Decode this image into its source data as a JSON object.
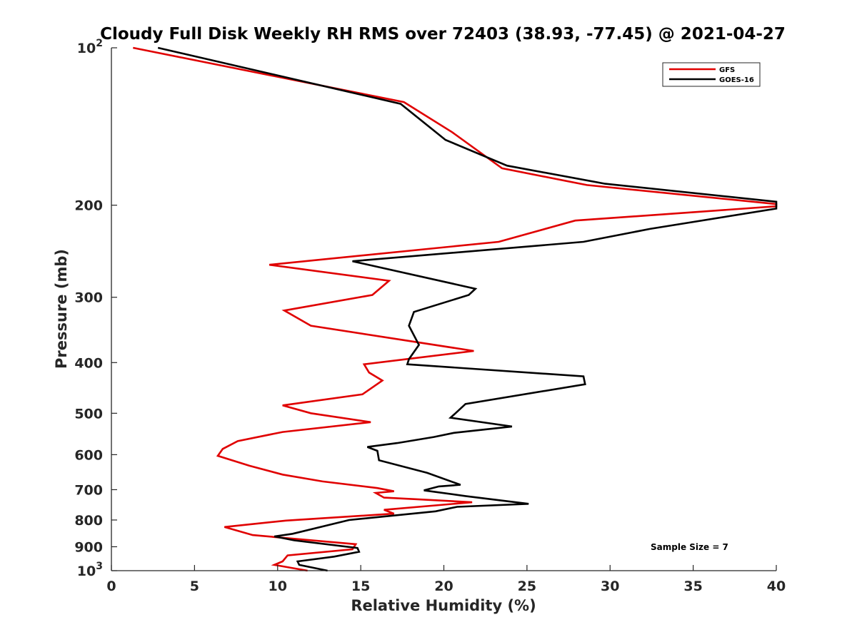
{
  "chart_data": {
    "type": "line",
    "title": "Cloudy Full Disk Weekly RH RMS over 72403 (38.93, -77.45) @ 2021-04-27",
    "xlabel": "Relative Humidity (%)",
    "ylabel": "Pressure (mb)",
    "xlim": [
      0,
      40
    ],
    "ylim": [
      100,
      1000
    ],
    "yscale": "log",
    "y_reversed": true,
    "grid": false,
    "legend_position": "top-right",
    "x_ticks": [
      0,
      5,
      10,
      15,
      20,
      25,
      30,
      35,
      40
    ],
    "x_tick_labels": [
      "0",
      "5",
      "10",
      "15",
      "20",
      "25",
      "30",
      "35",
      "40"
    ],
    "y_ticks": [
      100,
      200,
      300,
      400,
      500,
      600,
      700,
      800,
      900,
      1000
    ],
    "y_tick_labels": [
      {
        "base": "10",
        "exp": "2"
      },
      {
        "base": "200",
        "exp": ""
      },
      {
        "base": "300",
        "exp": ""
      },
      {
        "base": "400",
        "exp": ""
      },
      {
        "base": "500",
        "exp": ""
      },
      {
        "base": "600",
        "exp": ""
      },
      {
        "base": "700",
        "exp": ""
      },
      {
        "base": "800",
        "exp": ""
      },
      {
        "base": "900",
        "exp": ""
      },
      {
        "base": "10",
        "exp": "3"
      }
    ],
    "annotation": "Sample Size = 7",
    "series": [
      {
        "name": "GFS",
        "color": "#e00000",
        "x": [
          1.3,
          17.6,
          20.5,
          23.5,
          28.6,
          40.0,
          40.0,
          27.9,
          23.3,
          9.5,
          16.7,
          15.7,
          10.4,
          12.0,
          21.8,
          15.2,
          15.5,
          16.3,
          15.1,
          10.3,
          12.0,
          15.6,
          10.3,
          7.6,
          6.7,
          6.4,
          8.3,
          10.3,
          12.7,
          16.0,
          17.0,
          15.9,
          16.4,
          18.3,
          21.7,
          16.4,
          17.0,
          10.5,
          6.8,
          8.5,
          14.7,
          14.5,
          10.6,
          10.3,
          9.8,
          11.8
        ],
        "y": [
          100,
          127,
          145,
          170,
          183,
          199,
          201,
          214,
          235,
          260,
          279,
          297,
          318,
          340,
          380,
          403,
          418,
          433,
          460,
          483,
          500,
          520,
          543,
          565,
          585,
          603,
          630,
          655,
          675,
          695,
          705,
          710,
          725,
          730,
          740,
          765,
          778,
          802,
          825,
          855,
          890,
          910,
          935,
          960,
          975,
          1000
        ]
      },
      {
        "name": "GOES-16",
        "color": "#000000",
        "x": [
          2.8,
          17.4,
          20.1,
          23.8,
          29.7,
          40.0,
          40.0,
          32.4,
          28.4,
          14.5,
          21.9,
          21.5,
          18.2,
          17.9,
          18.5,
          17.9,
          17.8,
          28.4,
          28.5,
          21.3,
          20.7,
          20.4,
          24.1,
          20.6,
          19.4,
          17.2,
          15.4,
          16.0,
          16.1,
          19.0,
          21.0,
          19.7,
          18.8,
          21.3,
          25.1,
          20.8,
          19.5,
          14.3,
          10.9,
          9.8,
          11.0,
          14.8,
          14.9,
          13.4,
          11.2,
          11.3,
          13.0
        ],
        "y": [
          100,
          128,
          150,
          168,
          182,
          197,
          203,
          222,
          235,
          256,
          289,
          297,
          320,
          340,
          370,
          394,
          403,
          425,
          440,
          480,
          500,
          510,
          530,
          545,
          555,
          570,
          580,
          590,
          615,
          650,
          685,
          690,
          702,
          720,
          745,
          755,
          770,
          800,
          850,
          860,
          875,
          905,
          920,
          940,
          960,
          975,
          1000
        ]
      }
    ]
  }
}
